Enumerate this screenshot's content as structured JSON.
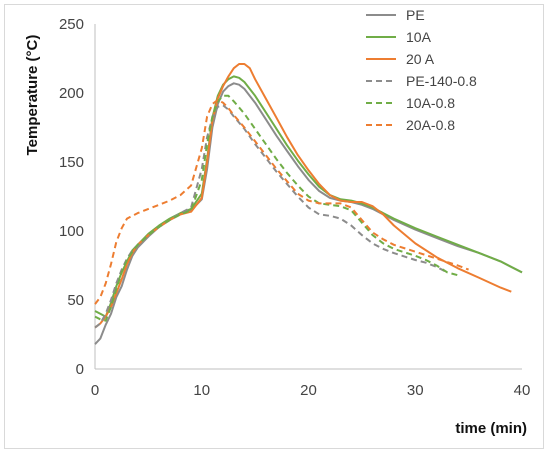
{
  "chart_data": {
    "type": "line",
    "title": "",
    "xlabel": "time (min)",
    "ylabel": "Temperature (°C)",
    "xlim": [
      0,
      40
    ],
    "ylim": [
      0,
      250
    ],
    "xticks": [
      "0",
      "10",
      "20",
      "30",
      "40"
    ],
    "yticks": [
      "0",
      "50",
      "100",
      "150",
      "200",
      "250"
    ],
    "grid": false,
    "legend_position": "top-right",
    "series": [
      {
        "name": "PE",
        "color": "#8c8c8c",
        "dash": "solid",
        "points": [
          [
            0,
            18
          ],
          [
            0.5,
            22
          ],
          [
            1,
            32
          ],
          [
            1.5,
            40
          ],
          [
            2,
            52
          ],
          [
            2.5,
            60
          ],
          [
            3,
            72
          ],
          [
            3.5,
            82
          ],
          [
            4,
            88
          ],
          [
            5,
            96
          ],
          [
            6,
            103
          ],
          [
            7,
            108
          ],
          [
            8,
            112
          ],
          [
            9,
            115
          ],
          [
            10,
            123
          ],
          [
            10.5,
            145
          ],
          [
            11,
            175
          ],
          [
            11.5,
            192
          ],
          [
            12,
            201
          ],
          [
            12.5,
            205
          ],
          [
            13,
            207
          ],
          [
            13.5,
            206
          ],
          [
            14,
            203
          ],
          [
            15,
            193
          ],
          [
            16,
            181
          ],
          [
            17,
            169
          ],
          [
            18,
            158
          ],
          [
            19,
            147
          ],
          [
            20,
            137
          ],
          [
            21,
            129
          ],
          [
            22,
            124
          ],
          [
            23,
            122
          ],
          [
            24,
            121
          ],
          [
            25,
            119
          ],
          [
            26,
            116
          ],
          [
            27,
            112
          ],
          [
            28,
            108
          ],
          [
            30,
            101
          ],
          [
            32,
            95
          ],
          [
            34,
            89
          ],
          [
            36,
            84
          ],
          [
            38,
            78
          ],
          [
            40,
            70
          ]
        ]
      },
      {
        "name": "10A",
        "color": "#70ad47",
        "dash": "solid",
        "points": [
          [
            0,
            42
          ],
          [
            0.5,
            40
          ],
          [
            1,
            38
          ],
          [
            1.5,
            48
          ],
          [
            2,
            60
          ],
          [
            2.5,
            70
          ],
          [
            3,
            78
          ],
          [
            3.5,
            86
          ],
          [
            4,
            90
          ],
          [
            5,
            98
          ],
          [
            6,
            104
          ],
          [
            7,
            109
          ],
          [
            8,
            113
          ],
          [
            9,
            116
          ],
          [
            10,
            127
          ],
          [
            10.5,
            152
          ],
          [
            11,
            182
          ],
          [
            11.5,
            198
          ],
          [
            12,
            206
          ],
          [
            12.5,
            210
          ],
          [
            13,
            212
          ],
          [
            13.5,
            211
          ],
          [
            14,
            208
          ],
          [
            15,
            198
          ],
          [
            16,
            186
          ],
          [
            17,
            174
          ],
          [
            18,
            162
          ],
          [
            19,
            151
          ],
          [
            20,
            141
          ],
          [
            21,
            132
          ],
          [
            22,
            126
          ],
          [
            23,
            123
          ],
          [
            24,
            122
          ],
          [
            25,
            120
          ],
          [
            26,
            117
          ],
          [
            27,
            113
          ],
          [
            28,
            109
          ],
          [
            30,
            102
          ],
          [
            32,
            96
          ],
          [
            34,
            90
          ],
          [
            36,
            84
          ],
          [
            38,
            78
          ],
          [
            40,
            70
          ]
        ]
      },
      {
        "name": "20 A",
        "color": "#ed7d31",
        "dash": "solid",
        "points": [
          [
            0,
            30
          ],
          [
            0.5,
            33
          ],
          [
            1,
            38
          ],
          [
            1.5,
            45
          ],
          [
            2,
            55
          ],
          [
            2.5,
            65
          ],
          [
            3,
            76
          ],
          [
            3.5,
            84
          ],
          [
            4,
            90
          ],
          [
            5,
            97
          ],
          [
            6,
            103
          ],
          [
            7,
            108
          ],
          [
            8,
            112
          ],
          [
            9,
            114
          ],
          [
            10,
            124
          ],
          [
            10.5,
            150
          ],
          [
            11,
            180
          ],
          [
            11.5,
            196
          ],
          [
            12,
            205
          ],
          [
            12.5,
            212
          ],
          [
            13,
            218
          ],
          [
            13.5,
            221
          ],
          [
            14,
            221
          ],
          [
            14.5,
            218
          ],
          [
            15,
            210
          ],
          [
            16,
            196
          ],
          [
            17,
            182
          ],
          [
            18,
            168
          ],
          [
            19,
            155
          ],
          [
            20,
            144
          ],
          [
            21,
            134
          ],
          [
            22,
            126
          ],
          [
            23,
            122
          ],
          [
            24,
            121
          ],
          [
            25,
            121
          ],
          [
            26,
            118
          ],
          [
            27,
            112
          ],
          [
            28,
            104
          ],
          [
            30,
            91
          ],
          [
            32,
            81
          ],
          [
            34,
            73
          ],
          [
            36,
            66
          ],
          [
            38,
            59
          ],
          [
            39,
            56
          ]
        ]
      },
      {
        "name": "PE-140-0.8",
        "color": "#8c8c8c",
        "dash": "dashed",
        "points": [
          [
            0,
            30
          ],
          [
            0.5,
            33
          ],
          [
            1,
            40
          ],
          [
            1.5,
            50
          ],
          [
            2,
            62
          ],
          [
            2.5,
            72
          ],
          [
            3,
            80
          ],
          [
            3.5,
            86
          ],
          [
            4,
            90
          ],
          [
            5,
            97
          ],
          [
            6,
            103
          ],
          [
            7,
            108
          ],
          [
            8,
            113
          ],
          [
            9,
            117
          ],
          [
            10,
            145
          ],
          [
            10.5,
            168
          ],
          [
            11,
            182
          ],
          [
            11.5,
            190
          ],
          [
            12,
            191
          ],
          [
            12.5,
            188
          ],
          [
            13,
            183
          ],
          [
            14,
            174
          ],
          [
            15,
            163
          ],
          [
            16,
            153
          ],
          [
            17,
            143
          ],
          [
            18,
            134
          ],
          [
            19,
            125
          ],
          [
            20,
            117
          ],
          [
            21,
            112
          ],
          [
            22,
            111
          ],
          [
            23,
            109
          ],
          [
            24,
            104
          ],
          [
            25,
            97
          ],
          [
            26,
            91
          ],
          [
            27,
            87
          ],
          [
            28,
            84
          ],
          [
            30,
            79
          ],
          [
            31,
            77
          ],
          [
            32,
            74
          ],
          [
            33,
            70
          ]
        ]
      },
      {
        "name": "10A-0.8",
        "color": "#70ad47",
        "dash": "dashed",
        "points": [
          [
            0,
            38
          ],
          [
            0.5,
            36
          ],
          [
            1,
            35
          ],
          [
            1.5,
            45
          ],
          [
            2,
            58
          ],
          [
            2.5,
            70
          ],
          [
            3,
            79
          ],
          [
            3.5,
            85
          ],
          [
            4,
            90
          ],
          [
            5,
            97
          ],
          [
            6,
            103
          ],
          [
            7,
            108
          ],
          [
            8,
            112
          ],
          [
            9,
            115
          ],
          [
            10,
            137
          ],
          [
            10.5,
            163
          ],
          [
            11,
            183
          ],
          [
            11.5,
            194
          ],
          [
            12,
            198
          ],
          [
            12.5,
            198
          ],
          [
            13,
            194
          ],
          [
            14,
            185
          ],
          [
            15,
            174
          ],
          [
            16,
            163
          ],
          [
            17,
            152
          ],
          [
            18,
            142
          ],
          [
            19,
            133
          ],
          [
            20,
            125
          ],
          [
            21,
            120
          ],
          [
            22,
            119
          ],
          [
            23,
            118
          ],
          [
            24,
            115
          ],
          [
            25,
            106
          ],
          [
            26,
            97
          ],
          [
            27,
            91
          ],
          [
            28,
            87
          ],
          [
            30,
            82
          ],
          [
            31,
            79
          ],
          [
            32,
            75
          ],
          [
            33,
            70
          ],
          [
            34,
            68
          ]
        ]
      },
      {
        "name": "20A-0.8",
        "color": "#ed7d31",
        "dash": "dashed",
        "points": [
          [
            0,
            47
          ],
          [
            0.5,
            52
          ],
          [
            1,
            62
          ],
          [
            1.5,
            76
          ],
          [
            2,
            92
          ],
          [
            2.5,
            102
          ],
          [
            3,
            109
          ],
          [
            4,
            113
          ],
          [
            5,
            116
          ],
          [
            6,
            119
          ],
          [
            7,
            122
          ],
          [
            8,
            126
          ],
          [
            9,
            133
          ],
          [
            10,
            160
          ],
          [
            10.5,
            183
          ],
          [
            11,
            192
          ],
          [
            11.5,
            195
          ],
          [
            12,
            193
          ],
          [
            12.5,
            189
          ],
          [
            13,
            184
          ],
          [
            14,
            175
          ],
          [
            15,
            165
          ],
          [
            16,
            155
          ],
          [
            17,
            145
          ],
          [
            18,
            136
          ],
          [
            19,
            127
          ],
          [
            20,
            122
          ],
          [
            21,
            120
          ],
          [
            22,
            120
          ],
          [
            23,
            120
          ],
          [
            24,
            117
          ],
          [
            25,
            108
          ],
          [
            26,
            99
          ],
          [
            27,
            94
          ],
          [
            28,
            90
          ],
          [
            30,
            85
          ],
          [
            32,
            80
          ],
          [
            34,
            75
          ],
          [
            35,
            72
          ]
        ]
      }
    ]
  }
}
